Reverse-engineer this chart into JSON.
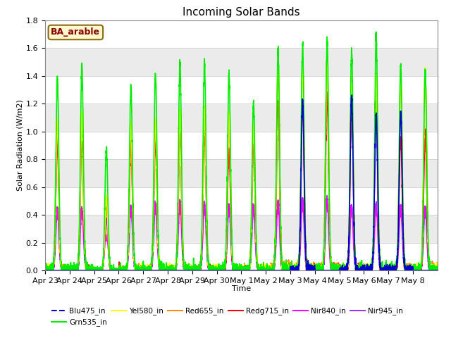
{
  "title": "Incoming Solar Bands",
  "xlabel": "Time",
  "ylabel": "Solar Radiation (W/m2)",
  "ylim": [
    0,
    1.8
  ],
  "annotation": "BA_arable",
  "annotation_color": "#8B0000",
  "annotation_bg": "#FFFACD",
  "annotation_border": "#8B6914",
  "series": [
    {
      "name": "Blu475_in",
      "color": "#0000CC",
      "lw": 1.2
    },
    {
      "name": "Grn535_in",
      "color": "#00EE00",
      "lw": 1.2
    },
    {
      "name": "Yel580_in",
      "color": "#FFFF00",
      "lw": 1.2
    },
    {
      "name": "Red655_in",
      "color": "#FF8C00",
      "lw": 1.2
    },
    {
      "name": "Redg715_in",
      "color": "#FF0000",
      "lw": 1.2
    },
    {
      "name": "Nir840_in",
      "color": "#FF00FF",
      "lw": 1.2
    },
    {
      "name": "Nir945_in",
      "color": "#9933FF",
      "lw": 1.2
    }
  ],
  "x_tick_labels": [
    "Apr 23",
    "Apr 24",
    "Apr 25",
    "Apr 26",
    "Apr 27",
    "Apr 28",
    "Apr 29",
    "Apr 30",
    "May 1",
    "May 2",
    "May 3",
    "May 4",
    "May 5",
    "May 6",
    "May 7",
    "May 8"
  ],
  "n_days": 16,
  "grn_peaks": [
    1.38,
    1.48,
    0.88,
    1.32,
    1.42,
    1.48,
    1.5,
    1.4,
    1.2,
    1.6,
    1.62,
    1.65,
    1.58,
    1.68,
    1.48,
    1.45
  ],
  "yel_peaks": [
    1.07,
    1.13,
    0.54,
    1.04,
    1.08,
    1.15,
    1.17,
    1.13,
    1.05,
    1.5,
    1.52,
    1.55,
    1.4,
    1.4,
    1.42,
    1.44
  ],
  "red_peaks": [
    1.05,
    1.1,
    0.52,
    1.02,
    1.06,
    1.12,
    1.15,
    1.1,
    1.04,
    1.48,
    1.5,
    1.52,
    1.38,
    1.38,
    1.4,
    1.42
  ],
  "redg_peaks": [
    0.9,
    0.95,
    0.5,
    0.9,
    0.92,
    0.98,
    1.0,
    0.86,
    0.92,
    1.2,
    1.22,
    1.25,
    1.18,
    1.2,
    0.96,
    0.98
  ],
  "nir840_peaks": [
    0.45,
    0.45,
    0.26,
    0.47,
    0.5,
    0.5,
    0.49,
    0.48,
    0.48,
    0.5,
    0.52,
    0.52,
    0.47,
    0.48,
    0.47,
    0.46
  ],
  "nir945_peaks": [
    0.45,
    0.45,
    0.37,
    0.46,
    0.48,
    0.5,
    0.49,
    0.47,
    0.46,
    0.5,
    0.52,
    0.52,
    0.47,
    0.48,
    0.47,
    0.46
  ],
  "blu_peaks": [
    0.0,
    0.0,
    0.0,
    0.0,
    0.0,
    0.0,
    0.0,
    0.0,
    0.0,
    0.0,
    1.22,
    0.0,
    1.25,
    1.13,
    1.13,
    0.0
  ]
}
